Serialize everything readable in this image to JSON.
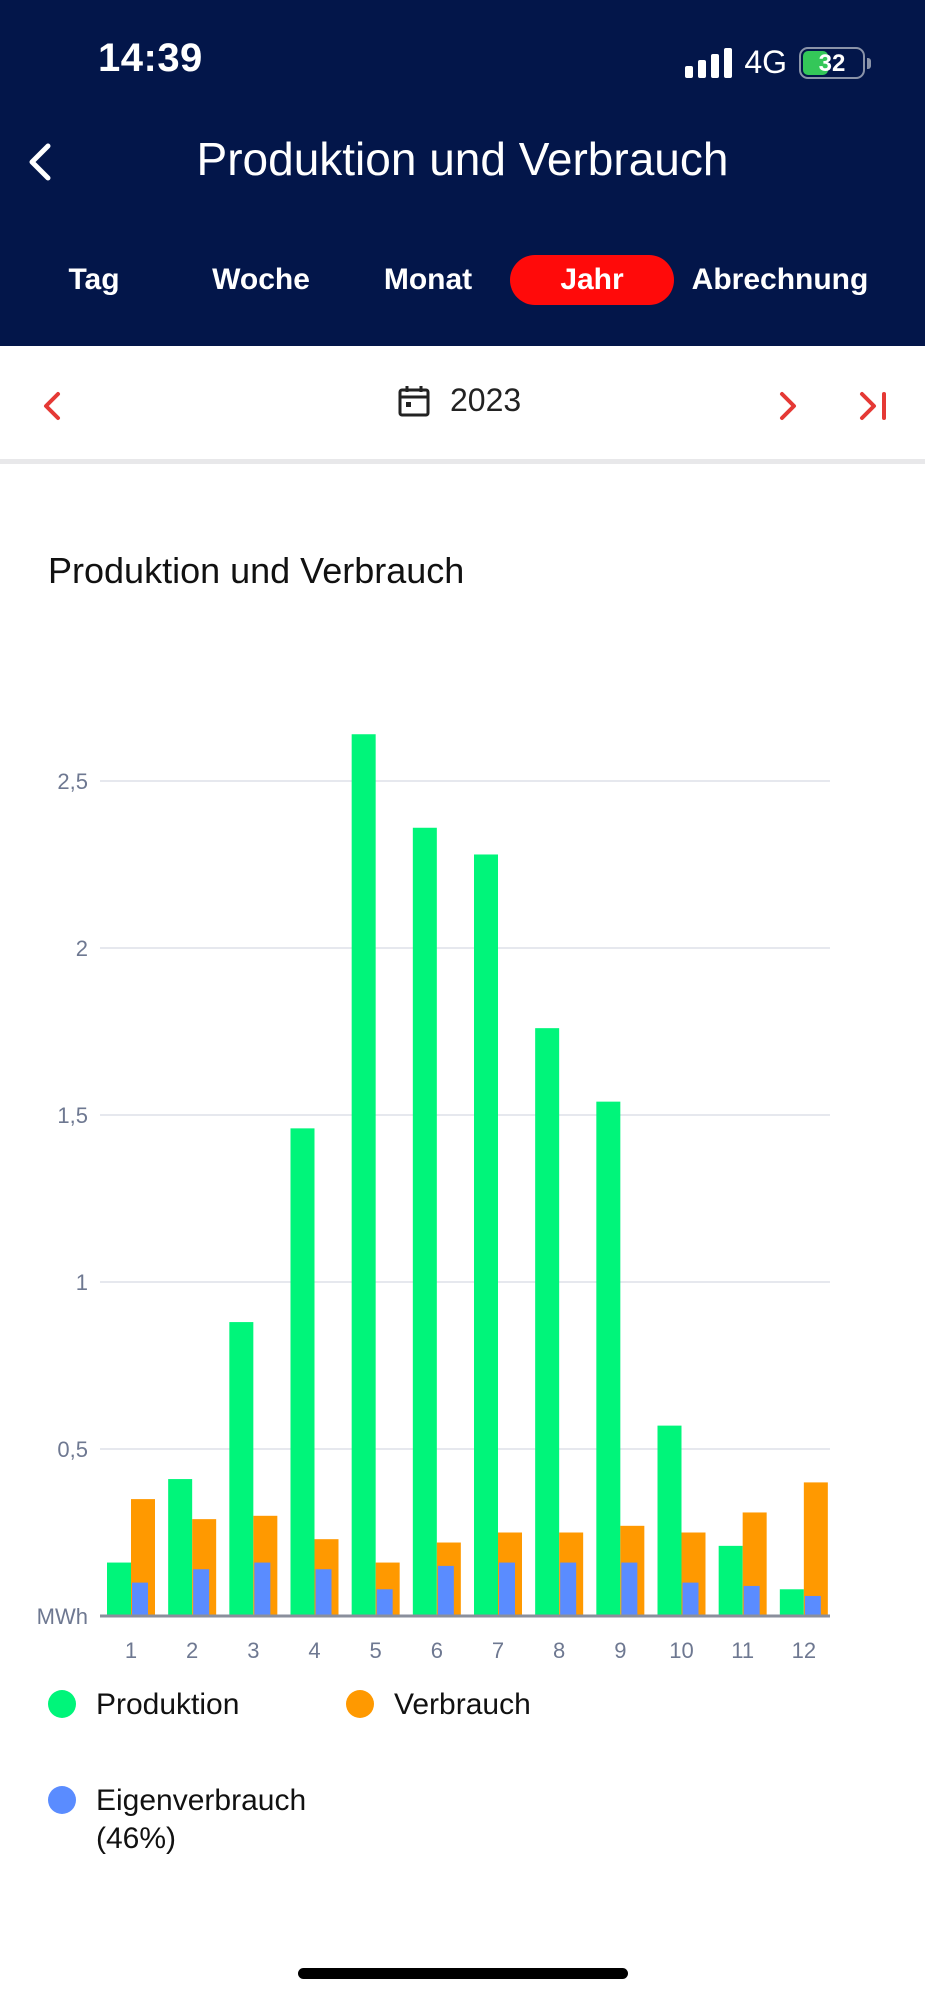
{
  "status": {
    "time": "14:39",
    "network": "4G",
    "battery": "32"
  },
  "header": {
    "title": "Produktion und Verbrauch"
  },
  "tabs": [
    {
      "label": "Tag",
      "active": false
    },
    {
      "label": "Woche",
      "active": false
    },
    {
      "label": "Monat",
      "active": false
    },
    {
      "label": "Jahr",
      "active": true
    },
    {
      "label": "Abrechnung",
      "active": false
    }
  ],
  "period": {
    "year": "2023"
  },
  "chart_title": "Produktion und Verbrauch",
  "colors": {
    "header_bg": "#03164a",
    "active_tab": "#ff0a0a",
    "accent": "#e53935",
    "produktion": "#00f57a",
    "verbrauch": "#ff9900",
    "eigenverbrauch": "#5a8cff"
  },
  "legend": [
    {
      "label": "Produktion",
      "color": "#00f57a"
    },
    {
      "label": "Verbrauch",
      "color": "#ff9900"
    },
    {
      "label": "Eigenverbrauch (46%)",
      "line1": "Eigenverbrauch",
      "line2": "(46%)",
      "color": "#5a8cff"
    }
  ],
  "chart_data": {
    "type": "bar",
    "categories": [
      "1",
      "2",
      "3",
      "4",
      "5",
      "6",
      "7",
      "8",
      "9",
      "10",
      "11",
      "12"
    ],
    "ylabel": "MWh",
    "ylim": [
      0,
      2.7
    ],
    "yticks": [
      "0,5",
      "1",
      "1,5",
      "2",
      "2,5"
    ],
    "ytick_values": [
      0.5,
      1,
      1.5,
      2,
      2.5
    ],
    "grid": true,
    "legend_position": "bottom",
    "series": [
      {
        "name": "Produktion",
        "color": "#00f57a",
        "values": [
          0.16,
          0.41,
          0.88,
          1.46,
          2.64,
          2.36,
          2.28,
          1.76,
          1.54,
          0.57,
          0.21,
          0.08
        ]
      },
      {
        "name": "Verbrauch",
        "color": "#ff9900",
        "values": [
          0.35,
          0.29,
          0.3,
          0.23,
          0.16,
          0.22,
          0.25,
          0.25,
          0.27,
          0.25,
          0.31,
          0.4
        ]
      },
      {
        "name": "Eigenverbrauch",
        "color": "#5a8cff",
        "values": [
          0.1,
          0.14,
          0.16,
          0.14,
          0.08,
          0.15,
          0.16,
          0.16,
          0.16,
          0.1,
          0.09,
          0.06
        ]
      }
    ]
  }
}
